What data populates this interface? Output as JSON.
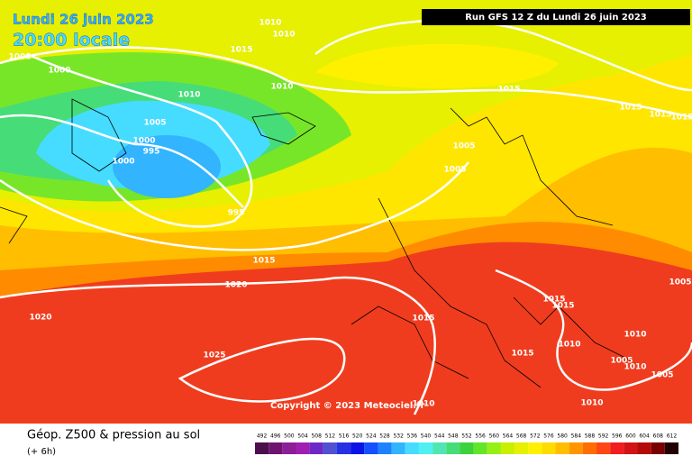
{
  "header": {
    "date": "Lundi 26 juin 2023",
    "time": "20:00 locale",
    "run": "Run GFS 12 Z du Lundi 26 juin 2023"
  },
  "isobar_labels": [
    1010,
    1010,
    1015,
    1000,
    1000,
    1010,
    1010,
    1015,
    1015,
    1015,
    1015,
    1005,
    1000,
    995,
    1000,
    1005,
    1005,
    995,
    1015,
    1020,
    1020,
    1015,
    1015,
    1015,
    1025,
    1015,
    1010,
    1010,
    1005,
    1005,
    1010,
    1005,
    1010,
    1010
  ],
  "copyright": "Copyright © 2023 Meteociel.fr",
  "footer": {
    "title": "Géop. Z500 & pression au sol",
    "subtitle": "(+ 6h)"
  },
  "scale": {
    "values": [
      492,
      496,
      500,
      504,
      508,
      512,
      516,
      520,
      524,
      528,
      532,
      536,
      540,
      544,
      548,
      552,
      556,
      560,
      564,
      568,
      572,
      576,
      580,
      584,
      588,
      592,
      596,
      600,
      604,
      608,
      612
    ],
    "colors": [
      "#4b0f4b",
      "#6e1470",
      "#8c1e96",
      "#a01eb4",
      "#6e28c8",
      "#5050d0",
      "#2830e6",
      "#0a14e6",
      "#1450ff",
      "#1e82ff",
      "#32b4ff",
      "#46dcff",
      "#50f0f0",
      "#50e6b4",
      "#46dc78",
      "#3cd23c",
      "#64e628",
      "#96f014",
      "#c8f000",
      "#e6f000",
      "#fff000",
      "#ffdc00",
      "#ffbe00",
      "#ff9600",
      "#ff6e00",
      "#ff4614",
      "#f01e1e",
      "#d21414",
      "#b40a0a",
      "#780000",
      "#200000"
    ]
  }
}
